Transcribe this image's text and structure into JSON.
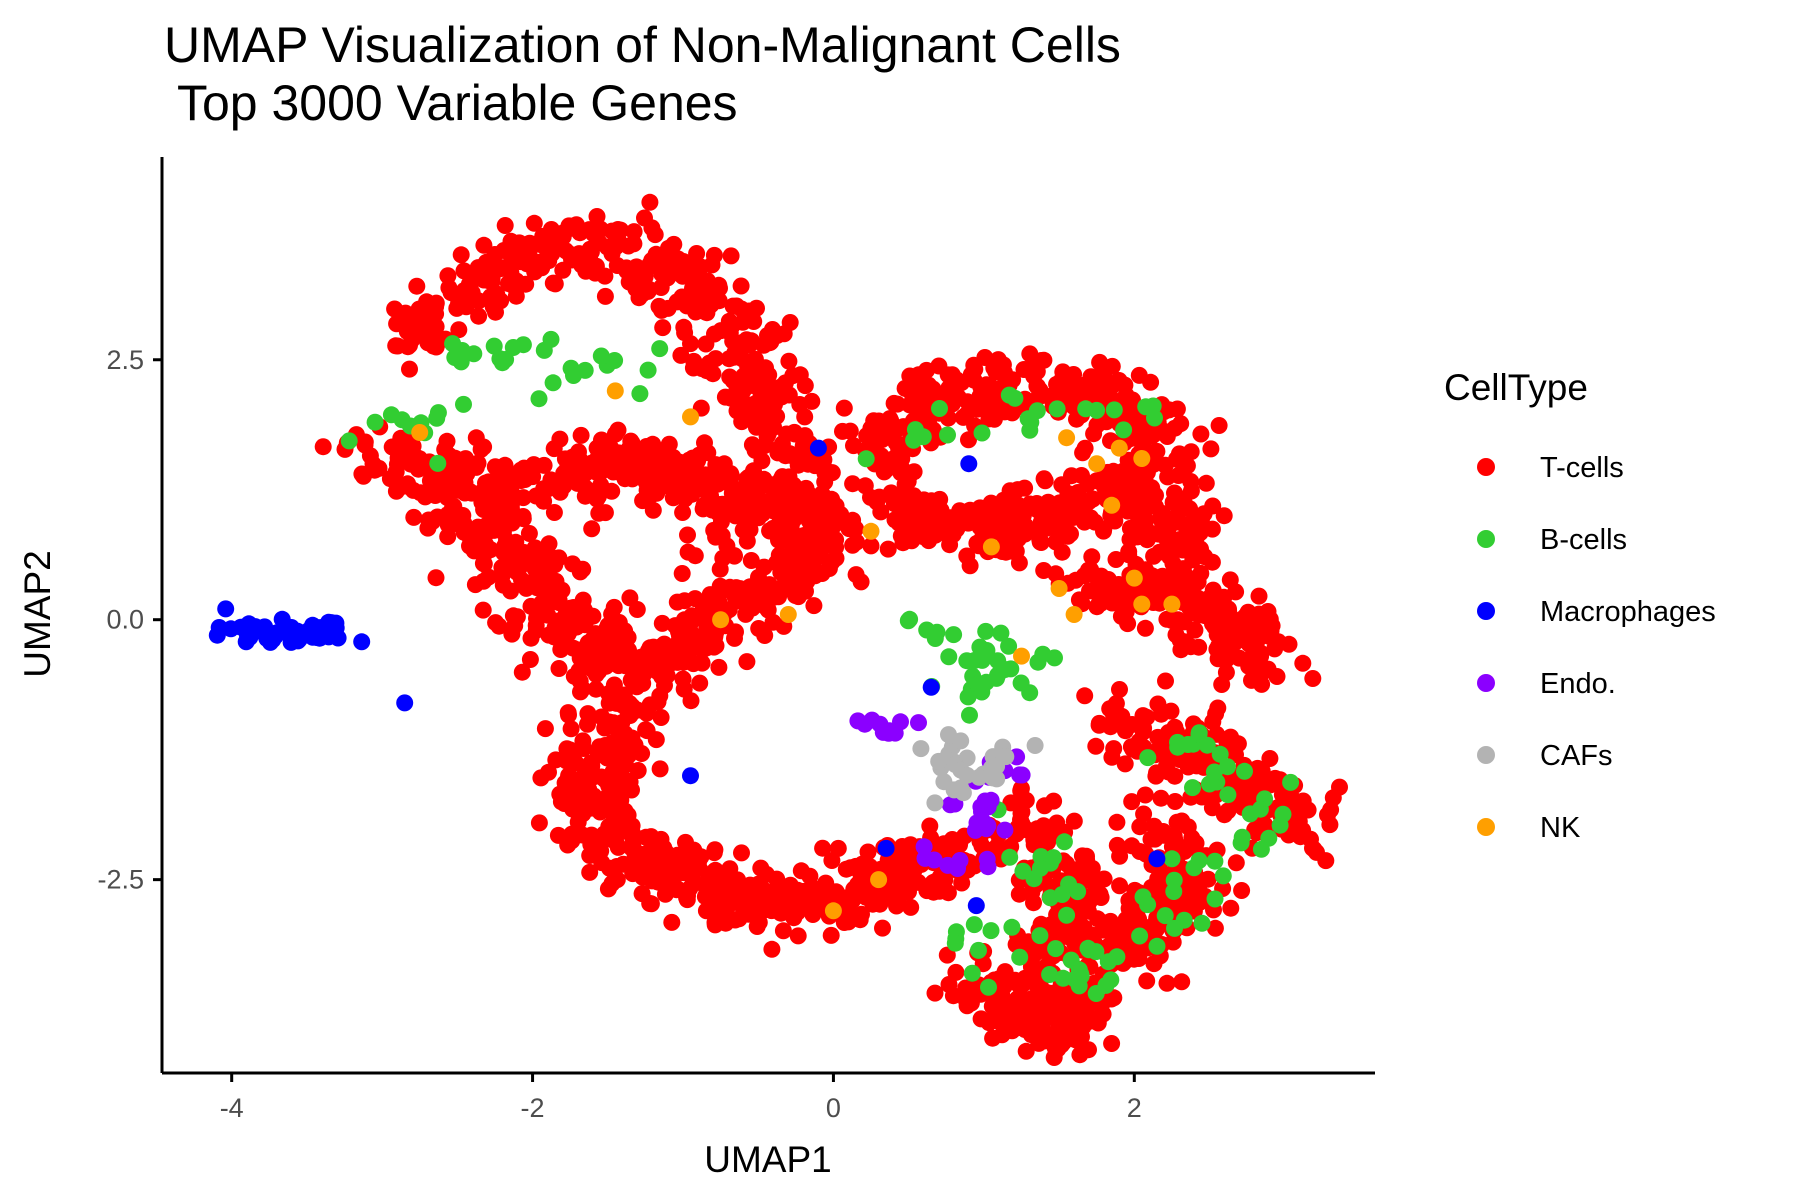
{
  "chart_data": {
    "type": "scatter",
    "title": "UMAP Visualization of Non-Malignant Cells",
    "subtitle": " Top 3000 Variable Genes",
    "xlabel": "UMAP1",
    "ylabel": "UMAP2",
    "xlim": [
      -4.45,
      3.6
    ],
    "ylim": [
      -4.35,
      4.45
    ],
    "xticks": [
      -4,
      -2,
      0,
      2
    ],
    "xtick_labels": [
      "-4",
      "-2",
      "0",
      "2"
    ],
    "yticks": [
      -2.5,
      0.0,
      2.5
    ],
    "ytick_labels": [
      "-2.5",
      "0.0",
      "2.5"
    ],
    "grid": false,
    "legend": {
      "title": "CellType",
      "position": "right"
    },
    "series": [
      {
        "name": "T-cells",
        "color": "#ff0000",
        "clusters": [
          [
            [
              -2.85,
              2.6
            ],
            [
              -2.45,
              3.2
            ],
            [
              -1.9,
              3.6
            ],
            [
              -1.4,
              3.5
            ],
            [
              -0.95,
              3.3
            ],
            [
              -0.75,
              2.9
            ],
            [
              -0.55,
              2.3
            ],
            [
              -0.35,
              1.7
            ],
            [
              -0.25,
              1.1
            ],
            [
              -0.15,
              0.7
            ]
          ],
          [
            [
              -3.15,
              1.6
            ],
            [
              -2.7,
              1.5
            ],
            [
              -2.3,
              1.3
            ],
            [
              -1.8,
              1.35
            ],
            [
              -1.4,
              1.5
            ],
            [
              -1.1,
              1.4
            ],
            [
              -0.75,
              1.2
            ],
            [
              -0.55,
              0.8
            ]
          ],
          [
            [
              -2.55,
              1.0
            ],
            [
              -2.2,
              0.7
            ],
            [
              -1.95,
              0.3
            ],
            [
              -1.8,
              -0.1
            ],
            [
              -1.5,
              -0.35
            ],
            [
              -1.2,
              -0.45
            ],
            [
              -0.9,
              -0.25
            ],
            [
              -0.65,
              0.15
            ],
            [
              -0.3,
              0.4
            ],
            [
              -0.1,
              0.9
            ]
          ],
          [
            [
              -1.4,
              -0.8
            ],
            [
              -1.5,
              -1.3
            ],
            [
              -1.65,
              -1.7
            ],
            [
              -1.45,
              -2.15
            ],
            [
              -1.1,
              -2.35
            ],
            [
              -0.75,
              -2.6
            ],
            [
              -0.4,
              -2.75
            ],
            [
              -0.05,
              -2.7
            ],
            [
              0.3,
              -2.45
            ],
            [
              0.6,
              -2.35
            ],
            [
              0.85,
              -2.3
            ]
          ],
          [
            [
              0.15,
              1.35
            ],
            [
              0.45,
              1.9
            ],
            [
              0.8,
              2.2
            ],
            [
              1.25,
              2.25
            ],
            [
              1.7,
              2.15
            ],
            [
              2.05,
              1.95
            ],
            [
              2.2,
              1.5
            ]
          ],
          [
            [
              0.45,
              1.05
            ],
            [
              0.8,
              0.85
            ],
            [
              1.2,
              0.9
            ],
            [
              1.55,
              1.1
            ],
            [
              1.95,
              1.3
            ],
            [
              2.2,
              1.0
            ],
            [
              2.3,
              0.6
            ]
          ],
          [
            [
              1.65,
              0.35
            ],
            [
              2.05,
              0.3
            ],
            [
              2.4,
              0.15
            ],
            [
              2.7,
              -0.1
            ],
            [
              2.95,
              -0.4
            ]
          ],
          [
            [
              1.85,
              -0.85
            ],
            [
              2.2,
              -1.2
            ],
            [
              2.55,
              -1.45
            ],
            [
              2.85,
              -1.75
            ],
            [
              3.05,
              -2.1
            ]
          ],
          [
            [
              2.15,
              -1.95
            ],
            [
              2.3,
              -2.4
            ],
            [
              2.2,
              -2.85
            ],
            [
              2.0,
              -3.25
            ]
          ],
          [
            [
              1.15,
              -1.85
            ],
            [
              1.45,
              -2.35
            ],
            [
              1.6,
              -2.8
            ],
            [
              1.55,
              -3.3
            ],
            [
              1.65,
              -3.75
            ],
            [
              1.5,
              -3.95
            ],
            [
              1.2,
              -3.7
            ],
            [
              0.95,
              -3.5
            ]
          ]
        ]
      },
      {
        "name": "B-cells",
        "color": "#32cd32",
        "clusters": [
          [
            [
              -2.6,
              2.65
            ],
            [
              -2.2,
              2.45
            ],
            [
              -1.7,
              2.6
            ],
            [
              -1.2,
              2.35
            ],
            [
              -3.05,
              1.9
            ],
            [
              -2.5,
              1.65
            ]
          ],
          [
            [
              0.45,
              1.6
            ],
            [
              0.95,
              2.1
            ],
            [
              1.7,
              2.0
            ],
            [
              2.15,
              1.9
            ]
          ],
          [
            [
              0.6,
              -0.1
            ],
            [
              0.9,
              -0.35
            ],
            [
              1.15,
              -0.25
            ],
            [
              0.75,
              -0.6
            ],
            [
              1.05,
              -0.7
            ],
            [
              1.5,
              -0.3
            ]
          ],
          [
            [
              2.2,
              -1.1
            ],
            [
              2.5,
              -1.35
            ],
            [
              2.75,
              -1.6
            ],
            [
              3.0,
              -1.9
            ],
            [
              2.55,
              -2.3
            ],
            [
              2.3,
              -2.7
            ],
            [
              2.15,
              -3.0
            ]
          ],
          [
            [
              1.2,
              -2.1
            ],
            [
              1.45,
              -2.3
            ],
            [
              1.75,
              -3.1
            ],
            [
              1.5,
              -3.45
            ],
            [
              1.85,
              -3.5
            ],
            [
              0.85,
              -3.05
            ],
            [
              1.0,
              -3.55
            ]
          ]
        ]
      },
      {
        "name": "Macrophages",
        "color": "#0000ff",
        "clusters": [
          [
            [
              -4.0,
              -0.05
            ],
            [
              -3.8,
              -0.12
            ],
            [
              -3.6,
              -0.18
            ],
            [
              -3.4,
              -0.12
            ],
            [
              -3.25,
              -0.2
            ]
          ],
          [
            [
              -2.85,
              -0.8
            ],
            [
              -0.95,
              -1.5
            ],
            [
              -0.1,
              1.65
            ],
            [
              0.35,
              -2.2
            ],
            [
              0.95,
              -2.75
            ],
            [
              2.15,
              -2.3
            ],
            [
              0.65,
              -0.65
            ],
            [
              0.9,
              1.5
            ]
          ]
        ]
      },
      {
        "name": "Endo.",
        "color": "#8b00ff",
        "clusters": [
          [
            [
              0.2,
              -0.9
            ],
            [
              0.3,
              -1.05
            ],
            [
              0.45,
              -1.1
            ]
          ],
          [
            [
              0.9,
              -1.75
            ],
            [
              1.05,
              -1.85
            ],
            [
              0.95,
              -2.0
            ]
          ],
          [
            [
              0.6,
              -1.9
            ],
            [
              1.3,
              -1.25
            ],
            [
              0.95,
              -2.6
            ],
            [
              0.55,
              -2.15
            ]
          ]
        ]
      },
      {
        "name": "CAFs",
        "color": "#b3b3b3",
        "clusters": [
          [
            [
              0.6,
              -1.15
            ],
            [
              0.75,
              -1.35
            ],
            [
              0.95,
              -1.3
            ],
            [
              1.1,
              -1.5
            ],
            [
              1.25,
              -1.3
            ],
            [
              0.8,
              -1.6
            ],
            [
              1.0,
              -1.65
            ]
          ]
        ]
      },
      {
        "name": "NK",
        "color": "#ff9f00",
        "clusters": [
          [
            [
              -2.75,
              1.8
            ],
            [
              -0.95,
              1.95
            ],
            [
              -1.45,
              2.2
            ],
            [
              1.55,
              1.75
            ],
            [
              1.75,
              1.5
            ],
            [
              1.9,
              1.65
            ],
            [
              2.05,
              1.55
            ],
            [
              1.05,
              0.7
            ],
            [
              0.25,
              0.85
            ],
            [
              1.5,
              0.3
            ],
            [
              2.0,
              0.4
            ],
            [
              2.05,
              0.15
            ],
            [
              -0.3,
              0.05
            ],
            [
              -0.75,
              0.0
            ],
            [
              1.25,
              -0.35
            ],
            [
              1.6,
              0.05
            ],
            [
              0.3,
              -2.5
            ],
            [
              0.0,
              -2.8
            ],
            [
              1.85,
              1.1
            ],
            [
              2.25,
              0.15
            ]
          ]
        ]
      }
    ]
  }
}
